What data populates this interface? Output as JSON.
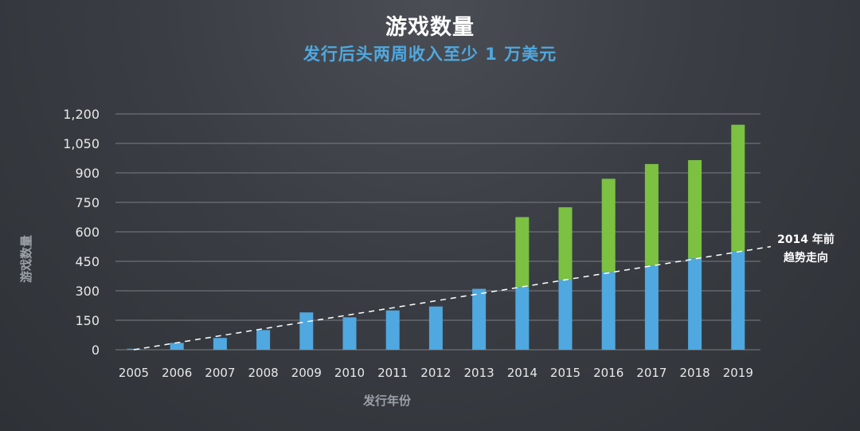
{
  "header": {
    "title": "游戏数量",
    "subtitle": "发行后头两周收入至少 1 万美元"
  },
  "colors": {
    "blue": "#4fa8e0",
    "green": "#7cc142",
    "grid": "#7a7e84",
    "tick_text": "#e8e8e8",
    "axis_label": "#9aa0a6",
    "trend": "#ffffff"
  },
  "chart_data": {
    "type": "bar",
    "stacked": true,
    "title": "游戏数量",
    "subtitle": "发行后头两周收入至少 1 万美元",
    "xlabel": "发行年份",
    "ylabel": "游戏数量",
    "ylim": [
      0,
      1200
    ],
    "yticks": [
      0,
      150,
      300,
      450,
      600,
      750,
      900,
      1050,
      1200
    ],
    "ytick_labels": [
      "0",
      "150",
      "300",
      "450",
      "600",
      "750",
      "900",
      "1,050",
      "1,200"
    ],
    "grid": true,
    "categories": [
      "2005",
      "2006",
      "2007",
      "2008",
      "2009",
      "2010",
      "2011",
      "2012",
      "2013",
      "2014",
      "2015",
      "2016",
      "2017",
      "2018",
      "2019"
    ],
    "series": [
      {
        "values": [
          5,
          35,
          60,
          100,
          190,
          165,
          200,
          220,
          310,
          320,
          355,
          395,
          430,
          465,
          500
        ]
      },
      {
        "values": [
          0,
          0,
          0,
          0,
          0,
          0,
          0,
          0,
          0,
          355,
          370,
          475,
          515,
          500,
          645
        ]
      }
    ],
    "totals": [
      5,
      35,
      60,
      100,
      190,
      165,
      200,
      220,
      310,
      675,
      725,
      870,
      945,
      965,
      1145
    ],
    "trend_line": {
      "label_line1": "2014 年前",
      "label_line2": "趋势走向",
      "start": {
        "x": "2005",
        "y": 0
      },
      "end_y_at_right_edge": 525
    }
  }
}
